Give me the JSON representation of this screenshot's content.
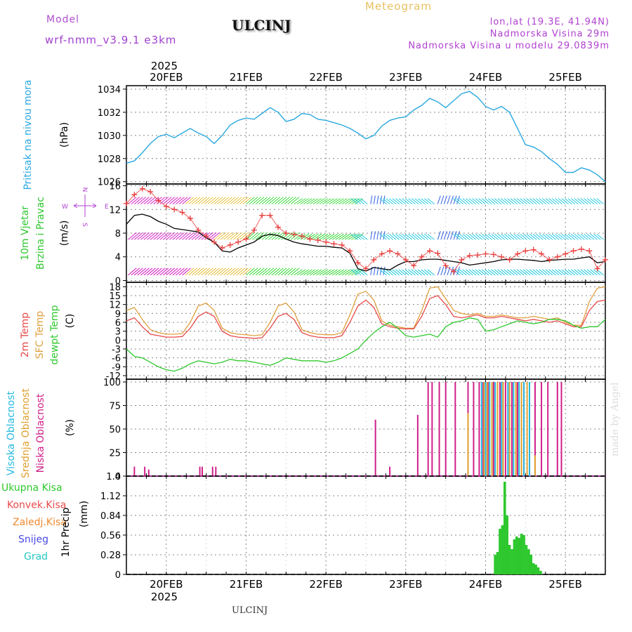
{
  "header": {
    "model_label": "Model",
    "model_name": "wrf-nmm_v3.9.1  e3km",
    "station_title": "ULCINJ",
    "meteogram": "Meteogram",
    "lonlat": "lon,lat (19.3E, 41.94N)",
    "elevation": "Nadmorska Visina 29m",
    "model_elevation": "Nadmorska Visina u modelu 29.0839m"
  },
  "footer": {
    "station": "ULCINJ",
    "credit": "made by Angel"
  },
  "colors": {
    "pressure": "#2aa8e0",
    "wind_speed": "#000000",
    "gust": "#e83c3c",
    "t2m": "#e84a4a",
    "tsfc": "#e0a040",
    "dewpt": "#2ec82e",
    "cloud_high": "#26b8e0",
    "cloud_mid": "#e0a030",
    "cloud_low": "#d0208a",
    "precip": "#2ec82e",
    "grid": "#888888"
  },
  "time_axis": {
    "year": "2025",
    "days": [
      "20FEB",
      "21FEB",
      "22FEB",
      "23FEB",
      "24FEB",
      "25FEB"
    ],
    "range_days": [
      -0.5,
      5.5
    ]
  },
  "chart_data": [
    {
      "type": "line",
      "panel": "pressure",
      "ylabel": "Pritisak na nivou mora",
      "unit": "(hPa)",
      "ylim": [
        1025.8,
        1034.3
      ],
      "yticks": [
        1026,
        1028,
        1030,
        1032,
        1034
      ],
      "series": [
        {
          "name": "MSLP",
          "x": [
            -0.5,
            -0.4,
            -0.3,
            -0.2,
            -0.1,
            0.0,
            0.1,
            0.2,
            0.3,
            0.4,
            0.5,
            0.6,
            0.7,
            0.8,
            0.9,
            1.0,
            1.1,
            1.2,
            1.3,
            1.4,
            1.5,
            1.6,
            1.7,
            1.8,
            1.9,
            2.0,
            2.1,
            2.2,
            2.3,
            2.4,
            2.5,
            2.6,
            2.7,
            2.8,
            2.9,
            3.0,
            3.1,
            3.2,
            3.3,
            3.4,
            3.5,
            3.6,
            3.7,
            3.8,
            3.9,
            4.0,
            4.1,
            4.2,
            4.3,
            4.4,
            4.5,
            4.6,
            4.7,
            4.8,
            4.9,
            5.0,
            5.1,
            5.2,
            5.3,
            5.4,
            5.5
          ],
          "values": [
            1027.6,
            1027.8,
            1028.5,
            1029.3,
            1029.9,
            1030.1,
            1029.8,
            1030.2,
            1030.6,
            1030.2,
            1029.9,
            1029.3,
            1030.0,
            1030.9,
            1031.3,
            1031.5,
            1031.4,
            1031.9,
            1032.4,
            1032.0,
            1031.2,
            1031.4,
            1031.9,
            1031.8,
            1031.4,
            1031.3,
            1031.1,
            1030.9,
            1030.6,
            1030.2,
            1029.7,
            1030.0,
            1030.8,
            1031.3,
            1031.5,
            1031.6,
            1032.2,
            1032.6,
            1033.2,
            1032.9,
            1032.4,
            1033.0,
            1033.6,
            1033.8,
            1033.3,
            1032.5,
            1032.2,
            1032.5,
            1032.0,
            1030.6,
            1029.2,
            1029.0,
            1028.6,
            1028.0,
            1027.5,
            1026.8,
            1026.8,
            1027.2,
            1027.0,
            1026.6,
            1026.0
          ]
        }
      ]
    },
    {
      "type": "line",
      "panel": "wind",
      "ylabel": [
        "10m Vjetar",
        "Brzina i Pravac"
      ],
      "unit": "(m/s)",
      "ylim": [
        -0.3,
        16.3
      ],
      "yticks": [
        0,
        4,
        8,
        12,
        16
      ],
      "compass": [
        "N",
        "W",
        "E",
        "S"
      ],
      "series": [
        {
          "name": "speed",
          "x": [
            -0.5,
            -0.4,
            -0.3,
            -0.2,
            -0.1,
            0.0,
            0.1,
            0.2,
            0.3,
            0.4,
            0.5,
            0.6,
            0.7,
            0.8,
            0.9,
            1.0,
            1.1,
            1.2,
            1.3,
            1.4,
            1.5,
            1.6,
            1.7,
            1.8,
            1.9,
            2.0,
            2.1,
            2.2,
            2.3,
            2.4,
            2.5,
            2.6,
            2.7,
            2.8,
            2.9,
            3.0,
            3.1,
            3.2,
            3.3,
            3.4,
            3.5,
            3.6,
            3.7,
            3.8,
            3.9,
            4.0,
            4.1,
            4.2,
            4.3,
            4.4,
            4.5,
            4.6,
            4.7,
            4.8,
            4.9,
            5.0,
            5.1,
            5.2,
            5.3,
            5.4,
            5.5
          ],
          "values": [
            9.5,
            11.0,
            11.2,
            10.8,
            10.0,
            9.5,
            8.8,
            8.6,
            8.4,
            8.2,
            7.2,
            6.5,
            5.0,
            4.8,
            5.5,
            6.0,
            6.5,
            7.5,
            7.8,
            7.6,
            7.0,
            6.5,
            6.2,
            6.0,
            5.8,
            5.8,
            5.6,
            5.5,
            4.6,
            2.0,
            1.6,
            2.2,
            2.0,
            1.8,
            2.6,
            3.2,
            3.2,
            3.5,
            3.6,
            3.6,
            3.4,
            3.2,
            3.0,
            2.6,
            2.8,
            3.0,
            3.2,
            3.5,
            3.6,
            3.6,
            3.5,
            3.4,
            3.2,
            3.4,
            3.5,
            3.6,
            3.6,
            3.8,
            4.0,
            3.0,
            3.2
          ]
        },
        {
          "name": "gust",
          "x": [
            -0.5,
            -0.4,
            -0.3,
            -0.2,
            -0.1,
            0.0,
            0.1,
            0.2,
            0.3,
            0.4,
            0.5,
            0.6,
            0.7,
            0.8,
            0.9,
            1.0,
            1.1,
            1.2,
            1.3,
            1.4,
            1.5,
            1.6,
            1.7,
            1.8,
            1.9,
            2.0,
            2.1,
            2.2,
            2.3,
            2.4,
            2.5,
            2.6,
            2.7,
            2.8,
            2.9,
            3.0,
            3.1,
            3.2,
            3.3,
            3.4,
            3.5,
            3.6,
            3.7,
            3.8,
            3.9,
            4.0,
            4.1,
            4.2,
            4.3,
            4.4,
            4.5,
            4.6,
            4.7,
            4.8,
            4.9,
            5.0,
            5.1,
            5.2,
            5.3,
            5.4,
            5.5
          ],
          "values": [
            13.0,
            14.5,
            15.5,
            15.0,
            13.5,
            12.5,
            12.0,
            11.5,
            10.5,
            8.5,
            7.5,
            6.5,
            5.5,
            6.0,
            6.5,
            7.0,
            8.5,
            11.0,
            11.0,
            9.0,
            8.0,
            7.8,
            7.5,
            7.0,
            6.8,
            6.5,
            6.2,
            6.0,
            5.0,
            3.0,
            2.0,
            3.5,
            4.5,
            5.0,
            4.5,
            3.5,
            2.5,
            4.0,
            5.0,
            4.6,
            2.5,
            1.5,
            3.5,
            4.2,
            4.3,
            4.5,
            4.4,
            4.0,
            3.5,
            4.5,
            5.0,
            5.2,
            4.5,
            3.5,
            4.0,
            4.5,
            5.0,
            5.3,
            5.0,
            2.0,
            3.5
          ]
        }
      ]
    },
    {
      "type": "line",
      "panel": "temperature",
      "ylabel": [
        "2m Temp",
        "SFC Temp",
        "dewpt Temp"
      ],
      "unit": "(C)",
      "ylim": [
        -13.2,
        19.5
      ],
      "yticks": [
        -12,
        -9,
        -6,
        -3,
        0,
        3,
        6,
        9,
        12,
        15,
        18
      ],
      "series": [
        {
          "name": "2m Temp",
          "x": [
            -0.5,
            -0.4,
            -0.3,
            -0.2,
            -0.1,
            0.0,
            0.1,
            0.2,
            0.3,
            0.4,
            0.5,
            0.6,
            0.7,
            0.8,
            0.9,
            1.0,
            1.1,
            1.2,
            1.3,
            1.4,
            1.5,
            1.6,
            1.7,
            1.8,
            1.9,
            2.0,
            2.1,
            2.2,
            2.3,
            2.4,
            2.5,
            2.6,
            2.7,
            2.8,
            2.9,
            3.0,
            3.1,
            3.2,
            3.3,
            3.4,
            3.5,
            3.6,
            3.7,
            3.8,
            3.9,
            4.0,
            4.1,
            4.2,
            4.3,
            4.4,
            4.5,
            4.6,
            4.7,
            4.8,
            4.9,
            5.0,
            5.1,
            5.2,
            5.3,
            5.4,
            5.5
          ],
          "values": [
            6.5,
            7.5,
            4.5,
            2.0,
            1.5,
            1.0,
            1.0,
            1.2,
            4.0,
            8.0,
            9.5,
            8.0,
            3.0,
            1.5,
            1.0,
            0.8,
            0.6,
            0.8,
            4.0,
            8.0,
            9.0,
            7.0,
            2.5,
            1.5,
            1.0,
            0.8,
            0.8,
            1.5,
            6.0,
            11.5,
            13.5,
            11.0,
            5.5,
            4.5,
            4.0,
            3.8,
            3.8,
            8.0,
            14.0,
            15.0,
            12.0,
            8.0,
            7.5,
            8.0,
            8.5,
            7.5,
            7.5,
            8.0,
            7.5,
            7.0,
            6.5,
            7.0,
            6.5,
            6.0,
            6.5,
            5.5,
            4.5,
            4.5,
            10.0,
            13.0,
            13.5
          ]
        },
        {
          "name": "SFC Temp",
          "x": [
            -0.5,
            -0.4,
            -0.3,
            -0.2,
            -0.1,
            0.0,
            0.1,
            0.2,
            0.3,
            0.4,
            0.5,
            0.6,
            0.7,
            0.8,
            0.9,
            1.0,
            1.1,
            1.2,
            1.3,
            1.4,
            1.5,
            1.6,
            1.7,
            1.8,
            1.9,
            2.0,
            2.1,
            2.2,
            2.3,
            2.4,
            2.5,
            2.6,
            2.7,
            2.8,
            2.9,
            3.0,
            3.1,
            3.2,
            3.3,
            3.4,
            3.5,
            3.6,
            3.7,
            3.8,
            3.9,
            4.0,
            4.1,
            4.2,
            4.3,
            4.4,
            4.5,
            4.6,
            4.7,
            4.8,
            4.9,
            5.0,
            5.1,
            5.2,
            5.3,
            5.4,
            5.5
          ],
          "values": [
            10.0,
            11.0,
            7.0,
            3.5,
            2.5,
            2.0,
            2.0,
            2.2,
            6.0,
            11.5,
            12.5,
            10.0,
            4.0,
            2.5,
            2.0,
            1.8,
            1.5,
            1.8,
            6.0,
            11.5,
            12.5,
            9.5,
            3.5,
            2.5,
            2.0,
            1.8,
            1.8,
            2.5,
            8.5,
            15.5,
            16.5,
            13.5,
            6.5,
            5.0,
            4.5,
            4.0,
            4.0,
            10.0,
            17.5,
            18.0,
            14.0,
            10.0,
            9.0,
            8.5,
            9.0,
            8.0,
            8.0,
            8.5,
            8.0,
            7.5,
            7.5,
            8.0,
            7.5,
            7.0,
            7.5,
            6.0,
            5.0,
            5.0,
            13.0,
            17.5,
            18.0
          ]
        },
        {
          "name": "dewpt Temp",
          "x": [
            -0.5,
            -0.4,
            -0.3,
            -0.2,
            -0.1,
            0.0,
            0.1,
            0.2,
            0.3,
            0.4,
            0.5,
            0.6,
            0.7,
            0.8,
            0.9,
            1.0,
            1.1,
            1.2,
            1.3,
            1.4,
            1.5,
            1.6,
            1.7,
            1.8,
            1.9,
            2.0,
            2.1,
            2.2,
            2.3,
            2.4,
            2.5,
            2.6,
            2.7,
            2.8,
            2.9,
            3.0,
            3.1,
            3.2,
            3.3,
            3.4,
            3.5,
            3.6,
            3.7,
            3.8,
            3.9,
            4.0,
            4.1,
            4.2,
            4.3,
            4.4,
            4.5,
            4.6,
            4.7,
            4.8,
            4.9,
            5.0,
            5.1,
            5.2,
            5.3,
            5.4,
            5.5
          ],
          "values": [
            -3.0,
            -5.5,
            -6.0,
            -7.5,
            -9.0,
            -10.0,
            -10.5,
            -9.5,
            -8.0,
            -7.0,
            -7.5,
            -8.0,
            -7.5,
            -6.5,
            -7.0,
            -7.0,
            -7.5,
            -8.0,
            -8.5,
            -7.5,
            -6.0,
            -6.5,
            -7.0,
            -7.0,
            -7.0,
            -7.5,
            -7.0,
            -6.0,
            -4.5,
            -3.0,
            0.0,
            2.5,
            4.5,
            6.0,
            4.0,
            1.5,
            1.0,
            1.5,
            2.0,
            1.0,
            4.5,
            6.0,
            6.5,
            7.5,
            7.0,
            3.0,
            3.5,
            4.5,
            5.5,
            6.5,
            6.0,
            5.5,
            6.0,
            7.0,
            7.0,
            6.5,
            5.0,
            4.0,
            4.5,
            4.5,
            7.0
          ]
        }
      ]
    },
    {
      "type": "bar",
      "panel": "cloud",
      "ylabel": [
        "Visoka Oblacnost",
        "Srednja Oblacnost",
        "Niska Oblacnost"
      ],
      "unit": "(%)",
      "ylim": [
        0,
        103
      ],
      "yticks": [
        0,
        25,
        50,
        75,
        100
      ],
      "series": [
        {
          "name": "Visoka Oblacnost",
          "x": [
            3.95,
            4.0,
            4.05,
            4.12,
            4.2,
            4.28,
            4.35,
            4.42,
            4.48,
            4.55
          ],
          "values": [
            100,
            100,
            100,
            100,
            100,
            100,
            100,
            100,
            100,
            100
          ]
        },
        {
          "name": "Srednja Oblacnost",
          "x": [
            3.78,
            3.98,
            4.02,
            4.08,
            4.15,
            4.22,
            4.3,
            4.38,
            4.45,
            4.52,
            4.62
          ],
          "values": [
            67,
            100,
            100,
            100,
            100,
            100,
            100,
            100,
            100,
            100,
            22
          ]
        },
        {
          "name": "Niska Oblacnost",
          "x": [
            -0.4,
            -0.27,
            -0.22,
            0.42,
            0.45,
            0.58,
            0.62,
            2.62,
            2.8,
            3.15,
            3.28,
            3.33,
            3.42,
            3.5,
            3.62,
            3.78,
            3.85,
            3.92,
            3.97,
            4.03,
            4.1,
            4.18,
            4.25,
            4.33,
            4.4,
            4.48,
            4.55,
            4.62,
            4.7,
            4.78,
            4.9,
            4.95
          ],
          "values": [
            10,
            10,
            7,
            10,
            10,
            10,
            10,
            60,
            10,
            65,
            100,
            100,
            100,
            100,
            100,
            100,
            100,
            100,
            100,
            100,
            100,
            100,
            100,
            100,
            100,
            100,
            100,
            100,
            100,
            100,
            100,
            100
          ]
        }
      ]
    },
    {
      "type": "bar",
      "panel": "precip",
      "ylabel": "1hr Precip",
      "unit": "(mm)",
      "legend": [
        "Ukupna Kisa",
        "Konvek.Kisa",
        "Zaledj.Kisa",
        "Snijeg",
        "Grad"
      ],
      "ylim": [
        0,
        1.4
      ],
      "yticks": [
        0,
        0.28,
        0.56,
        0.84,
        1.12,
        1.4
      ],
      "series": [
        {
          "name": "Ukupna Kisa",
          "x": [
            4.12,
            4.15,
            4.18,
            4.21,
            4.24,
            4.27,
            4.3,
            4.33,
            4.36,
            4.39,
            4.42,
            4.45,
            4.48,
            4.51,
            4.54,
            4.57,
            4.6,
            4.63,
            4.66,
            4.69
          ],
          "values": [
            0.28,
            0.32,
            0.65,
            0.7,
            1.32,
            0.84,
            0.42,
            0.36,
            0.5,
            0.54,
            0.52,
            0.58,
            0.56,
            0.42,
            0.36,
            0.28,
            0.16,
            0.14,
            0.1,
            0.05
          ]
        }
      ]
    }
  ]
}
